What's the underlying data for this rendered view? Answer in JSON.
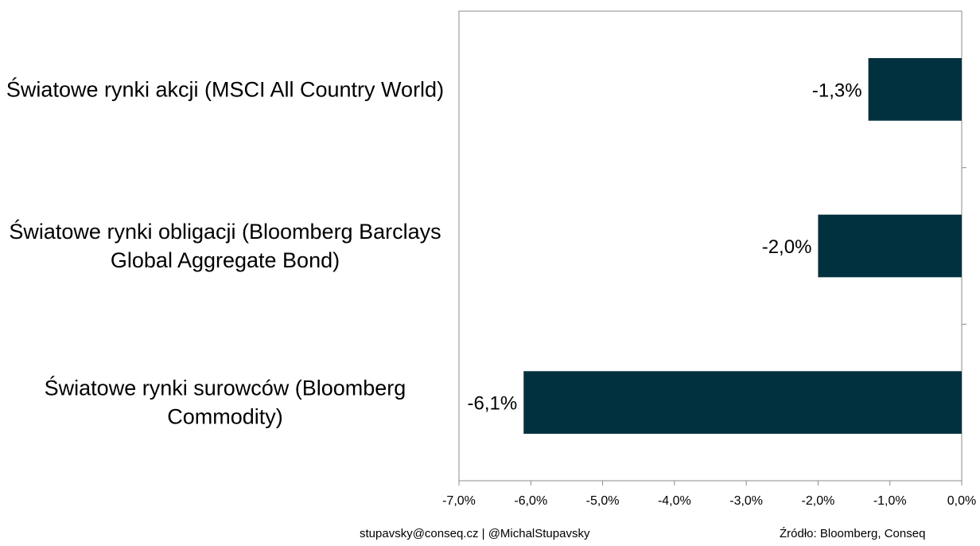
{
  "chart_data": {
    "type": "bar",
    "orientation": "horizontal",
    "title": "",
    "xlabel": "",
    "ylabel": "",
    "categories": [
      [
        "Światowe rynki akcji (MSCI All Country World)"
      ],
      [
        "Światowe rynki obligacji (Bloomberg Barclays",
        "Global Aggregate Bond)"
      ],
      [
        "Światowe rynki surowców (Bloomberg",
        "Commodity)"
      ]
    ],
    "values": [
      -1.3,
      -2.0,
      -6.1
    ],
    "data_labels": [
      "-1,3%",
      "-2,0%",
      "-6,1%"
    ],
    "xlim": [
      -7.0,
      0.0
    ],
    "x_ticks": [
      -7,
      -6,
      -5,
      -4,
      -3,
      -2,
      -1,
      0
    ],
    "x_tick_labels": [
      "-7,0%",
      "-6,0%",
      "-5,0%",
      "-4,0%",
      "-3,0%",
      "-2,0%",
      "-1,0%",
      "0,0%"
    ],
    "bar_color": "#01313f",
    "grid": false,
    "legend": "none"
  },
  "footer": {
    "contact": "stupavsky@conseq.cz  |  @MichalStupavsky",
    "source": "Źródło: Bloomberg, Conseq"
  }
}
